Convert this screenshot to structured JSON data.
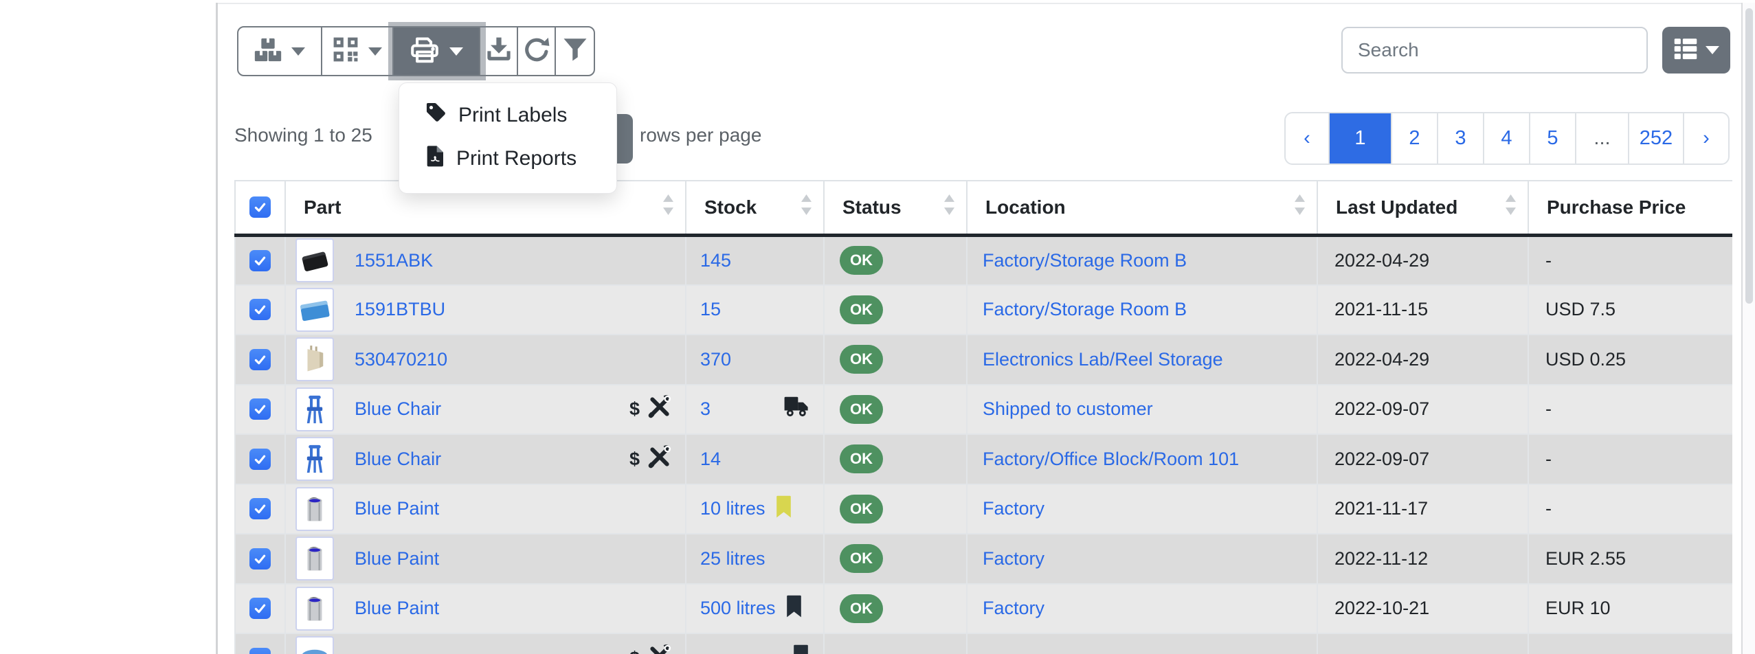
{
  "toolbar": {
    "buttons": [
      {
        "name": "stock-options-button",
        "icon": "boxes-icon",
        "has_caret": true
      },
      {
        "name": "barcode-actions-button",
        "icon": "qrcode-icon",
        "has_caret": true
      },
      {
        "name": "printing-actions-button",
        "icon": "printer-icon",
        "has_caret": true,
        "active": true
      },
      {
        "name": "download-button",
        "icon": "download-icon"
      },
      {
        "name": "refresh-button",
        "icon": "refresh-icon"
      },
      {
        "name": "filter-button",
        "icon": "filter-icon"
      }
    ],
    "print_menu": {
      "items": [
        {
          "label": "Print Labels",
          "icon": "tag-icon"
        },
        {
          "label": "Print Reports",
          "icon": "pdf-file-icon"
        }
      ]
    }
  },
  "status_bar": {
    "showing": "Showing 1 to 25",
    "rows_suffix": "rows per page"
  },
  "search": {
    "placeholder": "Search"
  },
  "columns_button": {
    "icon": "table-columns-icon"
  },
  "pagination": {
    "items": [
      {
        "label": "‹",
        "kind": "prev"
      },
      {
        "label": "1",
        "kind": "page",
        "active": true
      },
      {
        "label": "2",
        "kind": "page"
      },
      {
        "label": "3",
        "kind": "page"
      },
      {
        "label": "4",
        "kind": "page"
      },
      {
        "label": "5",
        "kind": "page"
      },
      {
        "label": "...",
        "kind": "ellipsis"
      },
      {
        "label": "252",
        "kind": "page"
      },
      {
        "label": "›",
        "kind": "next"
      }
    ]
  },
  "table": {
    "headers": [
      "Part",
      "Stock",
      "Status",
      "Location",
      "Last Updated",
      "Purchase Price"
    ],
    "sortable": [
      true,
      true,
      true,
      true,
      true,
      false
    ],
    "rows": [
      {
        "part": "1551ABK",
        "thumb": "enclosure-black",
        "stock": "145",
        "status": "OK",
        "location": "Factory/Storage Room B",
        "last_updated": "2022-04-29",
        "purchase_price": "-"
      },
      {
        "part": "1591BTBU",
        "thumb": "enclosure-blue",
        "stock": "15",
        "status": "OK",
        "location": "Factory/Storage Room B",
        "last_updated": "2021-11-15",
        "purchase_price": "USD 7.5"
      },
      {
        "part": "530470210",
        "thumb": "connector",
        "stock": "370",
        "status": "OK",
        "location": "Electronics Lab/Reel Storage",
        "last_updated": "2022-04-29",
        "purchase_price": "USD 0.25"
      },
      {
        "part": "Blue Chair",
        "thumb": "chair",
        "part_icons": [
          "dollar-icon",
          "tools-icon"
        ],
        "stock": "3",
        "stock_icon": "truck-icon",
        "stock_icon_right": true,
        "status": "OK",
        "location": "Shipped to customer",
        "last_updated": "2022-09-07",
        "purchase_price": "-"
      },
      {
        "part": "Blue Chair",
        "thumb": "chair",
        "part_icons": [
          "dollar-icon",
          "tools-icon"
        ],
        "stock": "14",
        "status": "OK",
        "location": "Factory/Office Block/Room 101",
        "last_updated": "2022-09-07",
        "purchase_price": "-"
      },
      {
        "part": "Blue Paint",
        "thumb": "paint",
        "stock": "10 litres",
        "stock_icon": "bookmark-yellow-icon",
        "status": "OK",
        "location": "Factory",
        "last_updated": "2021-11-17",
        "purchase_price": "-"
      },
      {
        "part": "Blue Paint",
        "thumb": "paint",
        "stock": "25 litres",
        "status": "OK",
        "location": "Factory",
        "last_updated": "2022-11-12",
        "purchase_price": "EUR 2.55"
      },
      {
        "part": "Blue Paint",
        "thumb": "paint",
        "stock": "500 litres",
        "stock_icon": "bookmark-dark-icon",
        "status": "OK",
        "location": "Factory",
        "last_updated": "2022-10-21",
        "purchase_price": "EUR 10"
      },
      {
        "part": "",
        "thumb": "widget-blue",
        "part_icons": [
          "dollar-icon",
          "tools-icon"
        ],
        "stock": "",
        "stock_icon": "bookmark-dark-icon",
        "stock_icon_right": true,
        "status": "",
        "location": "",
        "last_updated": "",
        "purchase_price": ""
      }
    ]
  },
  "colors": {
    "link_blue": "#2a69e6",
    "pagination_active_blue": "#2e6ce4",
    "checkbox_blue": "#3679f6",
    "status_ok_green": "#4e9160",
    "button_gray": "#6c757d",
    "row_stripe_dark": "#dcdcdc",
    "row_stripe_light": "#e9e9e9"
  }
}
